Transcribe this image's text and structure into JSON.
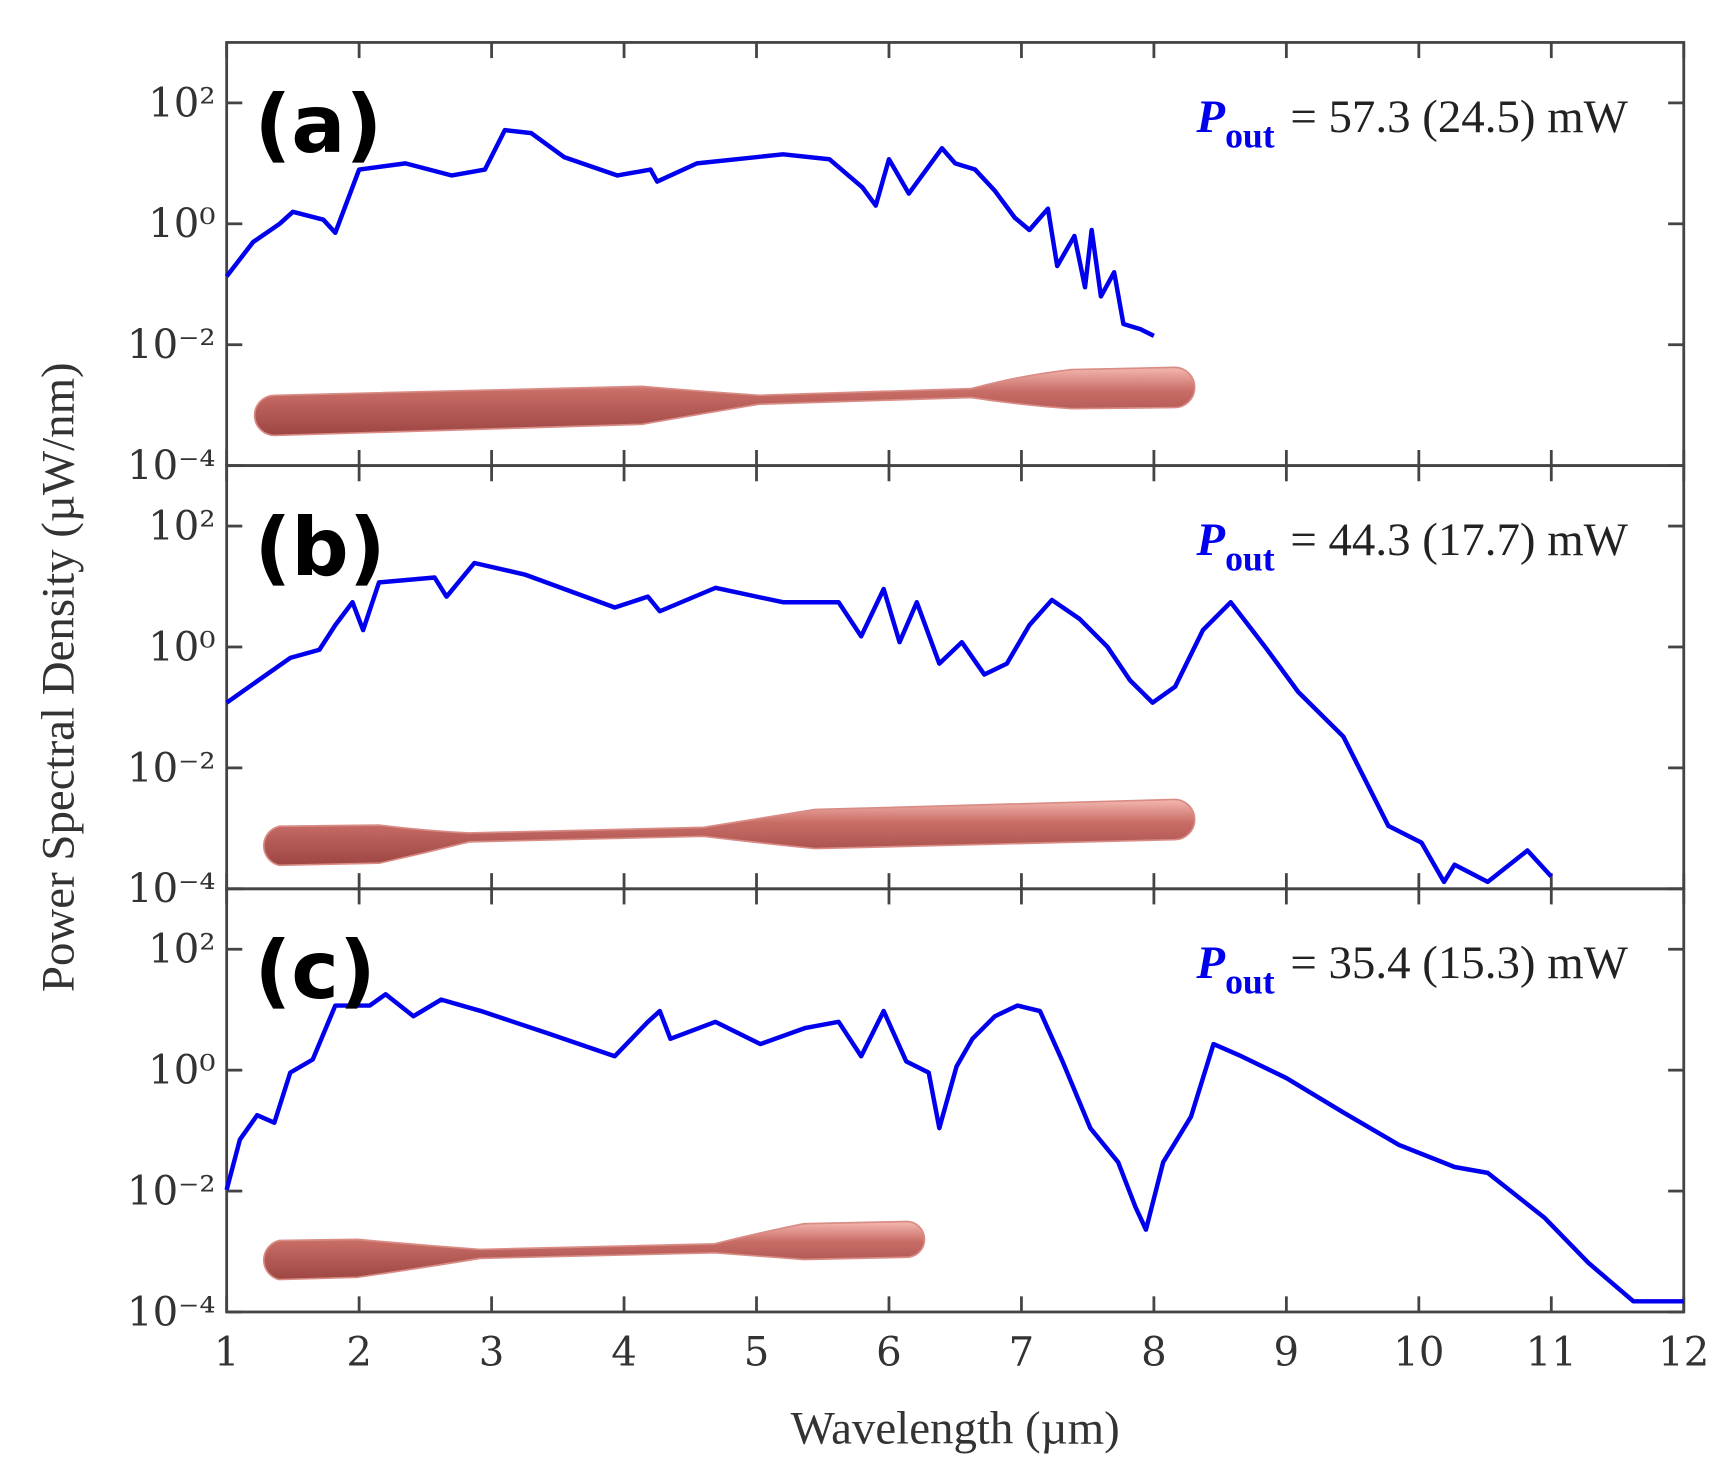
{
  "figure": {
    "xlabel": "Wavelength (µm)",
    "ylabel": "Power Spectral Density (µW/nm)"
  },
  "chart_data": [
    {
      "type": "line",
      "panel_label": "(a)",
      "annotation": {
        "symbol": "P",
        "subscript": "out",
        "text": "= 57.3 (24.5) mW"
      },
      "x": [
        1.0,
        1.2,
        1.4,
        1.5,
        1.73,
        1.82,
        2.0,
        2.35,
        2.7,
        2.95,
        3.1,
        3.3,
        3.55,
        3.95,
        4.2,
        4.25,
        4.55,
        5.2,
        5.55,
        5.8,
        5.9,
        6.0,
        6.15,
        6.4,
        6.5,
        6.65,
        6.8,
        6.95,
        7.06,
        7.2,
        7.27,
        7.4,
        7.48,
        7.53,
        7.6,
        7.7,
        7.77,
        7.9,
        8.0
      ],
      "series": [
        {
          "color": "#0000ee",
          "values": [
            0.135,
            0.5,
            1.0,
            1.58,
            1.17,
            0.71,
            7.9,
            10,
            6.3,
            7.9,
            35.5,
            31.6,
            12.6,
            6.3,
            7.9,
            5.0,
            10,
            14.1,
            11.7,
            4.0,
            2.0,
            11.7,
            3.16,
            17.8,
            10,
            7.9,
            3.5,
            1.26,
            0.79,
            1.78,
            0.2,
            0.63,
            0.089,
            0.79,
            0.063,
            0.158,
            0.022,
            0.018,
            0.014
          ]
        }
      ],
      "xlim": [
        1,
        12
      ],
      "xticks": [
        1,
        2,
        3,
        4,
        5,
        6,
        7,
        8,
        9,
        10,
        11,
        12
      ],
      "x_tick_labels": false,
      "ylim": [
        0.0001,
        1000
      ],
      "log_y": true,
      "yticks": [
        {
          "value": 0.0001,
          "label": "10⁻⁴"
        },
        {
          "value": 0.01,
          "label": "10⁻²"
        },
        {
          "value": 1,
          "label": "10⁰"
        },
        {
          "value": 100,
          "label": "10²"
        }
      ]
    },
    {
      "type": "line",
      "panel_label": "(b)",
      "annotation": {
        "symbol": "P",
        "subscript": "out",
        "text": "= 44.3 (17.7) mW"
      },
      "x": [
        1.0,
        1.48,
        1.7,
        1.82,
        1.95,
        2.03,
        2.15,
        2.57,
        2.66,
        2.87,
        3.25,
        3.93,
        4.18,
        4.27,
        4.69,
        5.2,
        5.62,
        5.79,
        5.96,
        6.08,
        6.21,
        6.38,
        6.55,
        6.72,
        6.89,
        7.06,
        7.23,
        7.44,
        7.65,
        7.82,
        7.99,
        8.16,
        8.37,
        8.58,
        8.84,
        9.09,
        9.43,
        9.77,
        10.02,
        10.19,
        10.27,
        10.52,
        10.82,
        11.0
      ],
      "series": [
        {
          "color": "#0000ee",
          "values": [
            0.12,
            0.66,
            0.9,
            2.3,
            5.5,
            1.9,
            11.7,
            14.1,
            6.8,
            24.5,
            15.8,
            4.5,
            6.8,
            3.9,
            9.5,
            5.5,
            5.5,
            1.5,
            9.1,
            1.2,
            5.5,
            0.53,
            1.2,
            0.35,
            0.53,
            2.3,
            6.0,
            2.9,
            1.0,
            0.28,
            0.12,
            0.22,
            1.9,
            5.5,
            1.0,
            0.18,
            0.033,
            0.0011,
            0.00058,
            0.00013,
            0.00025,
            0.00013,
            0.00043,
            0.00016
          ]
        }
      ],
      "xlim": [
        1,
        12
      ],
      "xticks": [
        1,
        2,
        3,
        4,
        5,
        6,
        7,
        8,
        9,
        10,
        11,
        12
      ],
      "x_tick_labels": false,
      "ylim": [
        0.0001,
        1000
      ],
      "log_y": true,
      "yticks": [
        {
          "value": 0.0001,
          "label": "10⁻⁴"
        },
        {
          "value": 0.01,
          "label": "10⁻²"
        },
        {
          "value": 1,
          "label": "10⁰"
        },
        {
          "value": 100,
          "label": "10²"
        }
      ]
    },
    {
      "type": "line",
      "panel_label": "(c)",
      "annotation": {
        "symbol": "P",
        "subscript": "out",
        "text": "= 35.4 (15.3) mW"
      },
      "x": [
        1.0,
        1.1,
        1.23,
        1.36,
        1.48,
        1.65,
        1.82,
        2.08,
        2.2,
        2.41,
        2.62,
        2.92,
        3.42,
        3.93,
        4.18,
        4.27,
        4.35,
        4.69,
        5.03,
        5.37,
        5.62,
        5.79,
        5.96,
        6.13,
        6.3,
        6.38,
        6.51,
        6.63,
        6.8,
        6.97,
        7.14,
        7.31,
        7.52,
        7.73,
        7.86,
        7.94,
        8.07,
        8.28,
        8.45,
        8.66,
        9.0,
        9.43,
        9.85,
        10.27,
        10.52,
        10.95,
        11.28,
        11.62,
        12.0
      ],
      "series": [
        {
          "color": "#0000ee",
          "values": [
            0.0105,
            0.071,
            0.18,
            0.135,
            0.91,
            1.5,
            11.7,
            11.7,
            18,
            7.8,
            14.7,
            9.5,
            4.1,
            1.7,
            6.3,
            9.5,
            3.3,
            6.3,
            2.7,
            5.0,
            6.3,
            1.7,
            9.5,
            1.4,
            0.91,
            0.11,
            1.15,
            3.3,
            7.8,
            11.7,
            9.5,
            1.4,
            0.11,
            0.03,
            0.0055,
            0.0023,
            0.03,
            0.17,
            2.7,
            1.7,
            0.74,
            0.2,
            0.058,
            0.025,
            0.02,
            0.0036,
            0.00065,
            0.00015,
            0.00015
          ]
        }
      ],
      "xlim": [
        1,
        12
      ],
      "xticks": [
        1,
        2,
        3,
        4,
        5,
        6,
        7,
        8,
        9,
        10,
        11,
        12
      ],
      "x_tick_labels": true,
      "ylim": [
        0.0001,
        1000
      ],
      "log_y": true,
      "yticks": [
        {
          "value": 0.0001,
          "label": "10⁻⁴"
        },
        {
          "value": 0.01,
          "label": "10⁻²"
        },
        {
          "value": 1,
          "label": "10⁰"
        },
        {
          "value": 100,
          "label": "10²"
        }
      ]
    }
  ]
}
